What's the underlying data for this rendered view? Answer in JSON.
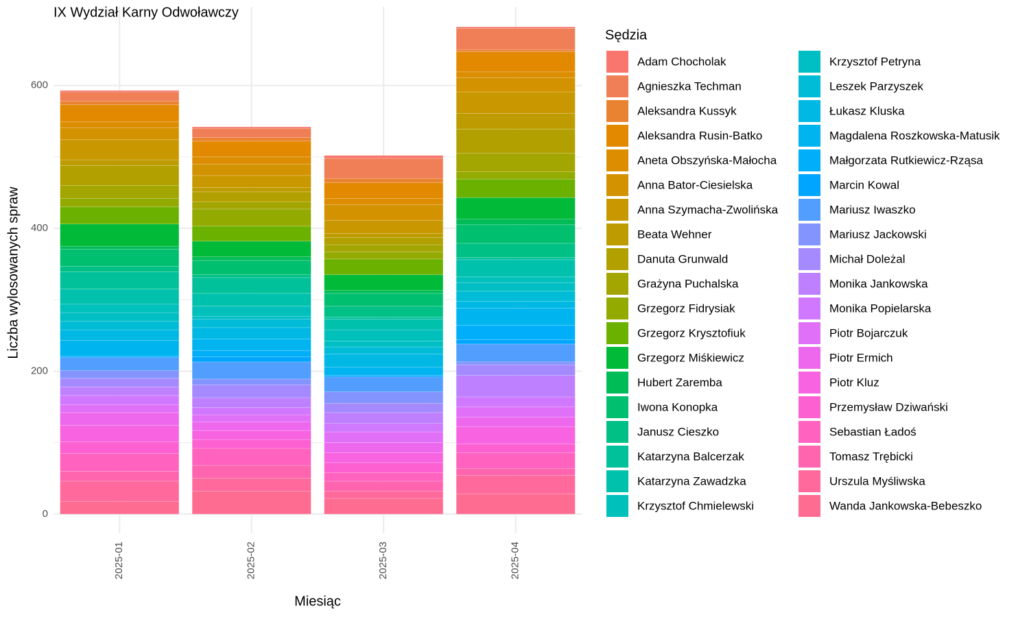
{
  "chart_data": {
    "type": "stacked_bar",
    "title": "IX Wydział Karny Odwoławczy",
    "x_label": "Miesiąc",
    "y_label": "Liczba wylosowanych spraw",
    "legend_title": "Sędzia",
    "legend": "right",
    "grid": true,
    "categories": [
      "2025-01",
      "2025-02",
      "2025-03",
      "2025-04"
    ],
    "ylim": [
      -27,
      710
    ],
    "yticks": [
      0,
      200,
      400,
      600
    ],
    "minor_yticks": [
      100,
      300,
      500
    ],
    "series": [
      {
        "name": "Adam Chocholak",
        "color": "#F8766D",
        "values": [
          2,
          2,
          4,
          2
        ]
      },
      {
        "name": "Agnieszka Techman",
        "color": "#F07E56",
        "values": [
          13,
          13,
          28,
          30
        ]
      },
      {
        "name": "Aleksandra Kussyk",
        "color": "#EA8331",
        "values": [
          5,
          5,
          6,
          3
        ]
      },
      {
        "name": "Aleksandra Rusin-Batko",
        "color": "#E38900",
        "values": [
          24,
          22,
          22,
          28
        ]
      },
      {
        "name": "Aneta Obszyńska-Małocha",
        "color": "#DC8D00",
        "values": [
          8,
          10,
          9,
          8
        ]
      },
      {
        "name": "Anna Bator-Ciesielska",
        "color": "#D39200",
        "values": [
          17,
          16,
          22,
          20
        ]
      },
      {
        "name": "Anna Szymacha-Zwolińska",
        "color": "#C99800",
        "values": [
          28,
          17,
          18,
          30
        ]
      },
      {
        "name": "Beata Wehner",
        "color": "#BE9C00",
        "values": [
          8,
          6,
          6,
          22
        ]
      },
      {
        "name": "Danuta Grunwald",
        "color": "#B1A000",
        "values": [
          28,
          14,
          10,
          34
        ]
      },
      {
        "name": "Grażyna Puchalska",
        "color": "#A3A500",
        "values": [
          18,
          10,
          10,
          26
        ]
      },
      {
        "name": "Grzegorz Fidrysiak",
        "color": "#93AA00",
        "values": [
          12,
          24,
          10,
          10
        ]
      },
      {
        "name": "Grzegorz Krysztofiuk",
        "color": "#6BB100",
        "values": [
          24,
          21,
          22,
          26
        ]
      },
      {
        "name": "Grzegorz Miśkiewicz",
        "color": "#00BA38",
        "values": [
          31,
          22,
          22,
          30
        ]
      },
      {
        "name": "Hubert Zaremba",
        "color": "#00BC56",
        "values": [
          4,
          5,
          4,
          8
        ]
      },
      {
        "name": "Iwona Konopka",
        "color": "#00BF6F",
        "values": [
          24,
          20,
          18,
          26
        ]
      },
      {
        "name": "Janusz Cieszko",
        "color": "#00C085",
        "values": [
          8,
          4,
          15,
          20
        ]
      },
      {
        "name": "Katarzyna Balcerzak",
        "color": "#00C19A",
        "values": [
          24,
          22,
          3,
          3
        ]
      },
      {
        "name": "Katarzyna Zawadzka",
        "color": "#00C1AC",
        "values": [
          21,
          18,
          15,
          24
        ]
      },
      {
        "name": "Krzysztof Chmielewski",
        "color": "#00C0BC",
        "values": [
          12,
          14,
          16,
          8
        ]
      },
      {
        "name": "Krzysztof Petryna",
        "color": "#00BFC4",
        "values": [
          12,
          4,
          8,
          12
        ]
      },
      {
        "name": "Leszek Parzyszek",
        "color": "#00BCD6",
        "values": [
          12,
          12,
          10,
          14
        ]
      },
      {
        "name": "Łukasz Kluska",
        "color": "#00B8E4",
        "values": [
          15,
          16,
          18,
          10
        ]
      },
      {
        "name": "Magdalena Roszkowska-Matusik",
        "color": "#00B4F0",
        "values": [
          22,
          16,
          12,
          24
        ]
      },
      {
        "name": "Małgorzata Rutkiewicz-Rząsa",
        "color": "#00AEFA",
        "values": [
          0,
          9,
          0,
          20
        ]
      },
      {
        "name": "Marcin Kowal",
        "color": "#00A5FF",
        "values": [
          2,
          7,
          2,
          6
        ]
      },
      {
        "name": "Mariusz Iwaszko",
        "color": "#529EFF",
        "values": [
          18,
          24,
          21,
          25
        ]
      },
      {
        "name": "Mariusz Jackowski",
        "color": "#8494FF",
        "values": [
          11,
          8,
          16,
          4
        ]
      },
      {
        "name": "Michał Doleżal",
        "color": "#A58AFF",
        "values": [
          12,
          18,
          13,
          15
        ]
      },
      {
        "name": "Monika Jankowska",
        "color": "#BE80FF",
        "values": [
          12,
          14,
          15,
          30
        ]
      },
      {
        "name": "Monika Popielarska",
        "color": "#D078FF",
        "values": [
          13,
          10,
          12,
          14
        ]
      },
      {
        "name": "Piotr Bojarczuk",
        "color": "#E170F8",
        "values": [
          11,
          10,
          15,
          14
        ]
      },
      {
        "name": "Piotr Ermich",
        "color": "#EE68EE",
        "values": [
          18,
          12,
          14,
          14
        ]
      },
      {
        "name": "Piotr Kluz",
        "color": "#F763E0",
        "values": [
          23,
          13,
          14,
          24
        ]
      },
      {
        "name": "Przemysław Dziwański",
        "color": "#FD61D1",
        "values": [
          16,
          12,
          14,
          12
        ]
      },
      {
        "name": "Sebastian Ładoś",
        "color": "#FF62BF",
        "values": [
          25,
          24,
          12,
          22
        ]
      },
      {
        "name": "Tomasz Trębicki",
        "color": "#FF65AE",
        "values": [
          14,
          18,
          14,
          10
        ]
      },
      {
        "name": "Urszula Myśliwska",
        "color": "#FF699C",
        "values": [
          28,
          18,
          10,
          26
        ]
      },
      {
        "name": "Wanda Jankowska-Bebeszko",
        "color": "#FF6C91",
        "values": [
          18,
          32,
          22,
          28
        ]
      }
    ]
  }
}
